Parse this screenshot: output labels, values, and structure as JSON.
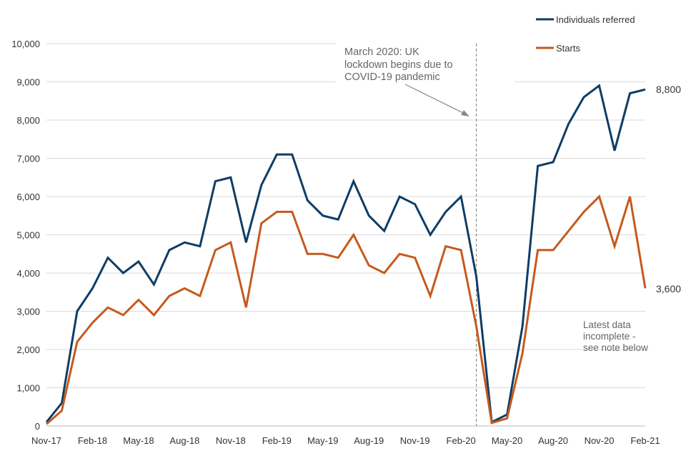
{
  "chart_data": {
    "type": "line",
    "title": "",
    "xlabel": "",
    "ylabel": "",
    "ylim": [
      0,
      10000
    ],
    "yticks": [
      0,
      1000,
      2000,
      3000,
      4000,
      5000,
      6000,
      7000,
      8000,
      9000,
      10000
    ],
    "ytick_labels": [
      "0",
      "1,000",
      "2,000",
      "3,000",
      "4,000",
      "5,000",
      "6,000",
      "7,000",
      "8,000",
      "9,000",
      "10,000"
    ],
    "grid": true,
    "legend_placement": "top-right",
    "x": [
      "Nov-17",
      "Dec-17",
      "Jan-18",
      "Feb-18",
      "Mar-18",
      "Apr-18",
      "May-18",
      "Jun-18",
      "Jul-18",
      "Aug-18",
      "Sep-18",
      "Oct-18",
      "Nov-18",
      "Dec-18",
      "Jan-19",
      "Feb-19",
      "Mar-19",
      "Apr-19",
      "May-19",
      "Jun-19",
      "Jul-19",
      "Aug-19",
      "Sep-19",
      "Oct-19",
      "Nov-19",
      "Dec-19",
      "Jan-20",
      "Feb-20",
      "Mar-20",
      "Apr-20",
      "May-20",
      "Jun-20",
      "Jul-20",
      "Aug-20",
      "Sep-20",
      "Oct-20",
      "Nov-20",
      "Dec-20",
      "Jan-21",
      "Feb-21"
    ],
    "xtick_labels": [
      "Nov-17",
      "Feb-18",
      "May-18",
      "Aug-18",
      "Nov-18",
      "Feb-19",
      "May-19",
      "Aug-19",
      "Nov-19",
      "Feb-20",
      "May-20",
      "Aug-20",
      "Nov-20",
      "Feb-21"
    ],
    "series": [
      {
        "name": "Individuals referred",
        "color": "#0e3d66",
        "values": [
          100,
          600,
          3000,
          3600,
          4400,
          4000,
          4300,
          3700,
          4600,
          4800,
          4700,
          6400,
          6500,
          4800,
          6300,
          7100,
          7100,
          5900,
          5500,
          5400,
          6400,
          5500,
          5100,
          6000,
          5800,
          5000,
          5600,
          6000,
          3900,
          100,
          300,
          2600,
          6800,
          6900,
          7900,
          8600,
          8900,
          7200,
          8700,
          8800
        ],
        "end_label": "8,800"
      },
      {
        "name": "Starts",
        "color": "#c55a1e",
        "values": [
          50,
          400,
          2200,
          2700,
          3100,
          2900,
          3300,
          2900,
          3400,
          3600,
          3400,
          4600,
          4800,
          3100,
          5300,
          5600,
          5600,
          4500,
          4500,
          4400,
          5000,
          4200,
          4000,
          4500,
          4400,
          3400,
          4700,
          4600,
          2600,
          80,
          200,
          1900,
          4600,
          4600,
          5100,
          5600,
          6000,
          4700,
          6000,
          3600
        ],
        "end_label": "3,600"
      }
    ],
    "annotations": [
      {
        "text_lines": [
          "March 2020: UK",
          "lockdown begins due to",
          "COVID-19 pandemic"
        ],
        "at": "Mar-20"
      },
      {
        "text_lines": [
          "Latest data",
          "incomplete -",
          "see note below"
        ]
      }
    ]
  }
}
